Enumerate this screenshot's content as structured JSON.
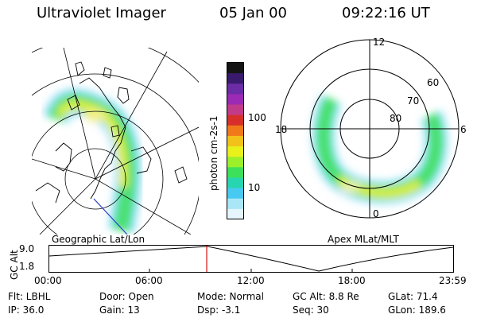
{
  "header": {
    "instrument": "Ultraviolet Imager",
    "date": "05 Jan 00",
    "time": "09:22:16 UT"
  },
  "colorbar": {
    "unit_label": "photon cm-2s-1",
    "ticks": [
      "100",
      "10"
    ],
    "colors": [
      "#141414",
      "#3a1a6e",
      "#6b2ca6",
      "#9b2ab5",
      "#c23b8a",
      "#d7302a",
      "#f07a1a",
      "#f2c21a",
      "#e8f21a",
      "#9cf02a",
      "#3de05a",
      "#27d6b0",
      "#47c9f2",
      "#a9e7f7",
      "#e5f5fb"
    ]
  },
  "left_panel": {
    "caption": "Geographic Lat/Lon"
  },
  "right_panel": {
    "caption": "Apex MLat/MLT",
    "mlt_labels": [
      "12",
      "18",
      "6",
      "0"
    ],
    "mlat_labels": [
      "60",
      "70",
      "80"
    ]
  },
  "altitude_plot": {
    "ylabel": "GC Alt",
    "yticks": [
      "9.0",
      "1.8"
    ],
    "xticks": [
      "00:00",
      "06:00",
      "12:00",
      "18:00",
      "23:59"
    ],
    "marker_time": "09:22"
  },
  "info": {
    "row1": {
      "flt": "Flt: LBHL",
      "door": "Door: Open",
      "mode": "Mode: Normal",
      "gcalt": "GC Alt: 8.8 Re",
      "glat": "GLat:  71.4"
    },
    "row2": {
      "ip": "IP: 36.0",
      "gain": "Gain: 13",
      "dsp": "Dsp:   -3.1",
      "seq": "Seq: 30",
      "glon": "GLon: 189.6"
    }
  }
}
